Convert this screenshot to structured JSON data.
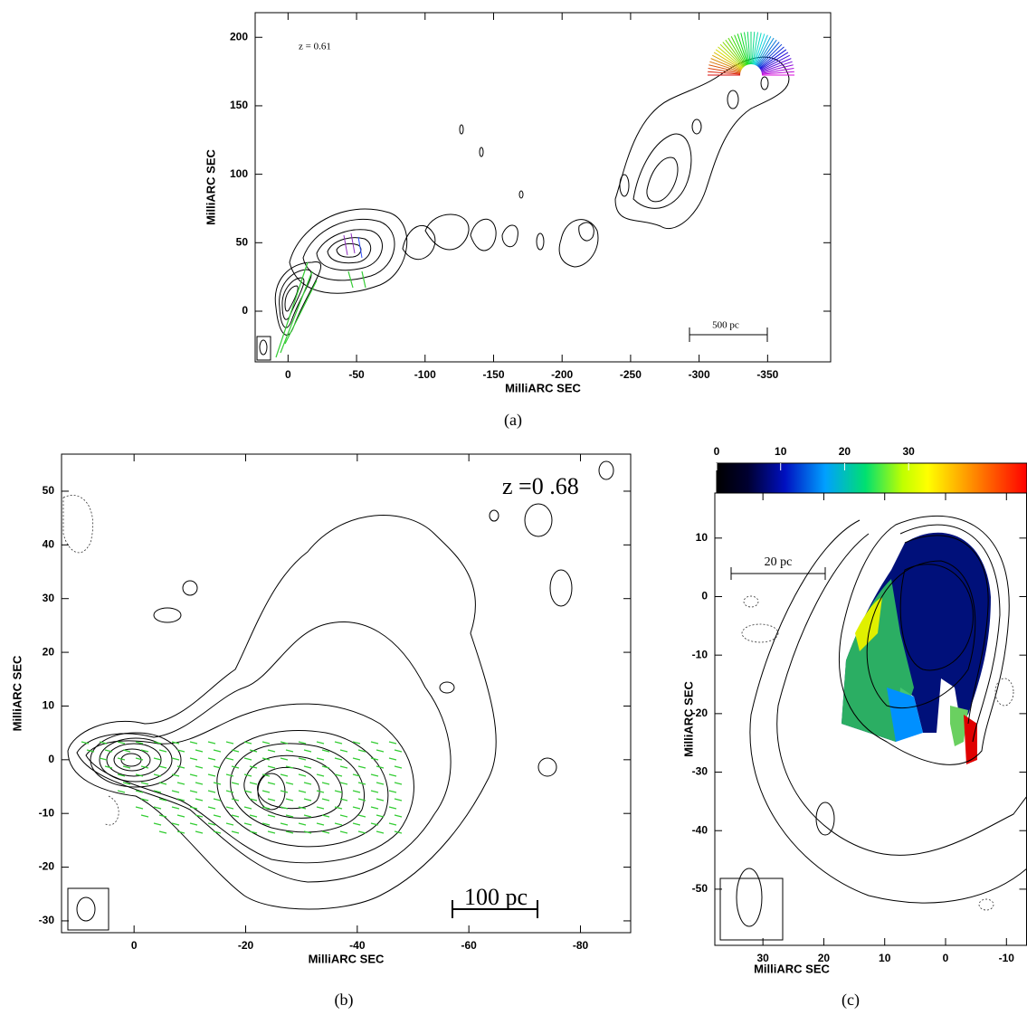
{
  "chart_data": [
    {
      "type": "contour",
      "xlabel": "MilliARC SEC",
      "ylabel": "MilliARC SEC",
      "xlim": [
        24,
        -396
      ],
      "ylim": [
        -37,
        218
      ],
      "xticks": [
        0,
        -50,
        -100,
        -150,
        -200,
        -250,
        -300,
        -350
      ],
      "yticks": [
        0,
        50,
        100,
        150,
        200
      ],
      "annotation": "z = 0.61",
      "scale_bar": "500 pc",
      "caption": "(a)"
    },
    {
      "type": "contour",
      "xlabel": "MilliARC SEC",
      "ylabel": "MilliARC SEC",
      "xlim": [
        13,
        -89
      ],
      "ylim": [
        -32.2,
        56.9
      ],
      "xticks": [
        0,
        -20,
        -40,
        -60,
        -80
      ],
      "yticks": [
        -30,
        -20,
        -10,
        0,
        10,
        20,
        30,
        40,
        50
      ],
      "annotation": "z =0 .68",
      "scale_bar": "100 pc",
      "caption": "(b)"
    },
    {
      "type": "contour",
      "xlabel": "MilliARC SEC",
      "ylabel": "MilliARC SEC",
      "xlim": [
        37.9,
        -13.3
      ],
      "ylim": [
        -59.6,
        17.7
      ],
      "xticks": [
        30,
        20,
        10,
        0,
        -10
      ],
      "yticks": [
        10,
        0,
        -10,
        -20,
        -30,
        -40,
        -50
      ],
      "colorbar": {
        "lim": [
          0,
          48.5
        ],
        "ticks": [
          0,
          10,
          20,
          30
        ]
      },
      "scale_bar": "20 pc",
      "caption": "(c)"
    }
  ]
}
